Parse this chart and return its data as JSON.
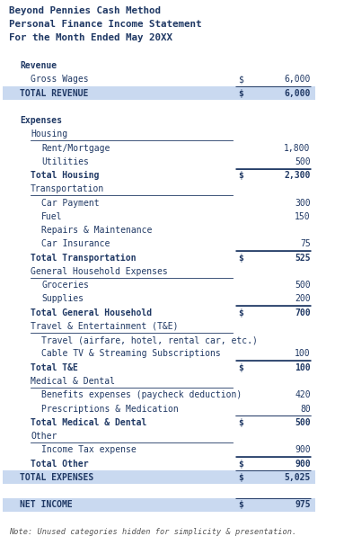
{
  "title_lines": [
    "Beyond Pennies Cash Method",
    "Personal Finance Income Statement",
    "For the Month Ended May 20XX"
  ],
  "note": "Note: Unused categories hidden for simplicity & presentation.",
  "highlight_color": "#c9d9f0",
  "rows": [
    {
      "label": "Revenue",
      "dollar": "",
      "amount": "",
      "style": "section_header",
      "indent": 1
    },
    {
      "label": "Gross Wages",
      "dollar": "$",
      "amount": "6,000",
      "style": "normal",
      "indent": 2
    },
    {
      "label": "TOTAL REVENUE",
      "dollar": "$",
      "amount": "6,000",
      "style": "total_highlight",
      "indent": 1
    },
    {
      "label": "",
      "dollar": "",
      "amount": "",
      "style": "blank",
      "indent": 0
    },
    {
      "label": "Expenses",
      "dollar": "",
      "amount": "",
      "style": "section_header",
      "indent": 1
    },
    {
      "label": "Housing",
      "dollar": "",
      "amount": "",
      "style": "subsection_underline",
      "indent": 2
    },
    {
      "label": "Rent/Mortgage",
      "dollar": "",
      "amount": "1,800",
      "style": "normal",
      "indent": 3
    },
    {
      "label": "Utilities",
      "dollar": "",
      "amount": "500",
      "style": "normal_underline",
      "indent": 3
    },
    {
      "label": "Total Housing",
      "dollar": "$",
      "amount": "2,300",
      "style": "subtotal",
      "indent": 2
    },
    {
      "label": "Transportation",
      "dollar": "",
      "amount": "",
      "style": "subsection_underline",
      "indent": 2
    },
    {
      "label": "Car Payment",
      "dollar": "",
      "amount": "300",
      "style": "normal",
      "indent": 3
    },
    {
      "label": "Fuel",
      "dollar": "",
      "amount": "150",
      "style": "normal",
      "indent": 3
    },
    {
      "label": "Repairs & Maintenance",
      "dollar": "",
      "amount": "",
      "style": "normal",
      "indent": 3
    },
    {
      "label": "Car Insurance",
      "dollar": "",
      "amount": "75",
      "style": "normal_underline",
      "indent": 3
    },
    {
      "label": "Total Transportation",
      "dollar": "$",
      "amount": "525",
      "style": "subtotal",
      "indent": 2
    },
    {
      "label": "General Household Expenses",
      "dollar": "",
      "amount": "",
      "style": "subsection_underline",
      "indent": 2
    },
    {
      "label": "Groceries",
      "dollar": "",
      "amount": "500",
      "style": "normal",
      "indent": 3
    },
    {
      "label": "Supplies",
      "dollar": "",
      "amount": "200",
      "style": "normal_underline",
      "indent": 3
    },
    {
      "label": "Total General Household",
      "dollar": "$",
      "amount": "700",
      "style": "subtotal",
      "indent": 2
    },
    {
      "label": "Travel & Entertainment (T&E)",
      "dollar": "",
      "amount": "",
      "style": "subsection_underline",
      "indent": 2
    },
    {
      "label": "Travel (airfare, hotel, rental car, etc.)",
      "dollar": "",
      "amount": "",
      "style": "normal",
      "indent": 3
    },
    {
      "label": "Cable TV & Streaming Subscriptions",
      "dollar": "",
      "amount": "100",
      "style": "normal_underline",
      "indent": 3
    },
    {
      "label": "Total T&E",
      "dollar": "$",
      "amount": "100",
      "style": "subtotal",
      "indent": 2
    },
    {
      "label": "Medical & Dental",
      "dollar": "",
      "amount": "",
      "style": "subsection_underline",
      "indent": 2
    },
    {
      "label": "Benefits expenses (paycheck deduction)",
      "dollar": "",
      "amount": "420",
      "style": "normal",
      "indent": 3
    },
    {
      "label": "Prescriptions & Medication",
      "dollar": "",
      "amount": "80",
      "style": "normal_underline",
      "indent": 3
    },
    {
      "label": "Total Medical & Dental",
      "dollar": "$",
      "amount": "500",
      "style": "subtotal",
      "indent": 2
    },
    {
      "label": "Other",
      "dollar": "",
      "amount": "",
      "style": "subsection_underline",
      "indent": 2
    },
    {
      "label": "Income Tax expense",
      "dollar": "",
      "amount": "900",
      "style": "normal_underline",
      "indent": 3
    },
    {
      "label": "Total Other",
      "dollar": "$",
      "amount": "900",
      "style": "subtotal",
      "indent": 2
    },
    {
      "label": "TOTAL EXPENSES",
      "dollar": "$",
      "amount": "5,025",
      "style": "total_highlight",
      "indent": 1
    },
    {
      "label": "",
      "dollar": "",
      "amount": "",
      "style": "blank",
      "indent": 0
    },
    {
      "label": "NET INCOME",
      "dollar": "$",
      "amount": "975",
      "style": "net_income_highlight",
      "indent": 1
    }
  ],
  "text_color": "#1f3864",
  "bg_color": "#ffffff",
  "figsize": [
    3.83,
    6.16
  ],
  "dpi": 100
}
